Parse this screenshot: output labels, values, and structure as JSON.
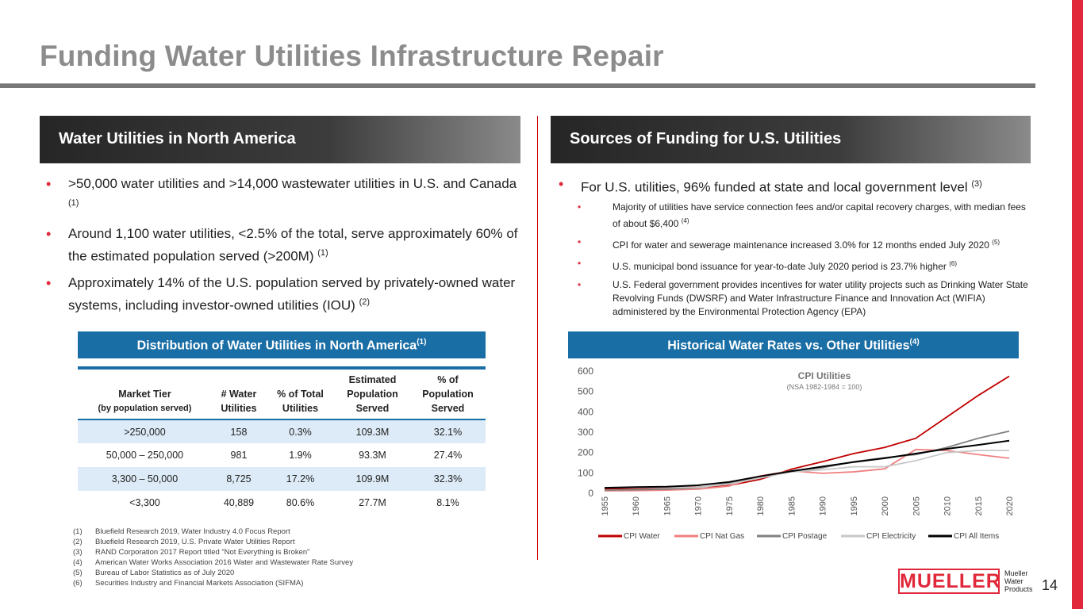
{
  "title": "Funding Water Utilities Infrastructure Repair",
  "left": {
    "heading": "Water Utilities in North America",
    "bullets": [
      {
        "text": ">50,000 water utilities and >14,000 wastewater utilities in U.S. and Canada",
        "ref": "(1)"
      },
      {
        "text": "Around 1,100 water utilities, <2.5% of the total, serve approximately 60% of the estimated population served (>200M)",
        "ref": "(1)"
      },
      {
        "text": "Approximately 14% of the U.S. population served by privately-owned water systems, including investor-owned utilities (IOU)",
        "ref": "(2)"
      }
    ]
  },
  "right": {
    "heading": "Sources of Funding for U.S. Utilities",
    "bullet": {
      "text": "For U.S. utilities, 96% funded at state and local government level",
      "ref": "(3)"
    },
    "subbullets": [
      {
        "text": "Majority of utilities have service connection fees and/or capital recovery charges, with median fees of about $6,400",
        "ref": "(4)"
      },
      {
        "text": "CPI for water and sewerage maintenance increased 3.0% for 12 months ended July 2020",
        "ref": "(5)"
      },
      {
        "text": "U.S. municipal bond issuance for year-to-date July 2020 period is 23.7% higher",
        "ref": "(6)"
      },
      {
        "text": "U.S. Federal government provides incentives for water utility projects such as Drinking Water State Revolving Funds (DWSRF) and Water Infrastructure Finance and Innovation Act (WIFIA) administered by the Environmental Protection Agency (EPA)",
        "ref": ""
      }
    ]
  },
  "table": {
    "heading": "Distribution of Water Utilities in North America",
    "heading_ref": "(1)",
    "columns": [
      {
        "l1": "",
        "l2": "Market Tier",
        "l3": "(by population served)"
      },
      {
        "l1": "",
        "l2": "# Water",
        "l3": "Utilities"
      },
      {
        "l1": "",
        "l2": "% of Total",
        "l3": "Utilities"
      },
      {
        "l1": "Estimated",
        "l2": "Population",
        "l3": "Served"
      },
      {
        "l1": "% of",
        "l2": "Population",
        "l3": "Served"
      }
    ],
    "rows": [
      [
        ">250,000",
        "158",
        "0.3%",
        "109.3M",
        "32.1%"
      ],
      [
        "50,000 – 250,000",
        "981",
        "1.9%",
        "93.3M",
        "27.4%"
      ],
      [
        "3,300 – 50,000",
        "8,725",
        "17.2%",
        "109.9M",
        "32.3%"
      ],
      [
        "<3,300",
        "40,889",
        "80.6%",
        "27.7M",
        "8.1%"
      ]
    ]
  },
  "chart_heading": "Historical Water Rates vs. Other Utilities",
  "chart_heading_ref": "(4)",
  "chart_data": {
    "type": "line",
    "title": "CPI Utilities",
    "subtitle": "(NSA 1982-1984 = 100)",
    "xlim": [
      1955,
      2020
    ],
    "ylim": [
      0,
      600
    ],
    "yticks": [
      0,
      100,
      200,
      300,
      400,
      500,
      600
    ],
    "xticks": [
      1955,
      1960,
      1965,
      1970,
      1975,
      1980,
      1985,
      1990,
      1995,
      2000,
      2005,
      2010,
      2015,
      2020
    ],
    "grid": false,
    "legend_position": "bottom",
    "x": [
      1955,
      1960,
      1965,
      1970,
      1975,
      1980,
      1985,
      1990,
      1995,
      2000,
      2005,
      2010,
      2015,
      2020
    ],
    "series": [
      {
        "name": "CPI Water",
        "color": "#c00000",
        "values": [
          22,
          24,
          26,
          30,
          38,
          68,
          118,
          155,
          195,
          225,
          270,
          375,
          480,
          575
        ]
      },
      {
        "name": "CPI Nat Gas",
        "color": "#f08080",
        "values": [
          12,
          13,
          15,
          20,
          35,
          85,
          110,
          98,
          105,
          120,
          215,
          210,
          190,
          172
        ]
      },
      {
        "name": "CPI Postage",
        "color": "#808080",
        "values": [
          15,
          17,
          20,
          27,
          48,
          75,
          110,
          125,
          155,
          175,
          190,
          225,
          270,
          305
        ]
      },
      {
        "name": "CPI Electricity",
        "color": "#c8c8c8",
        "values": [
          28,
          28,
          28,
          29,
          45,
          75,
          105,
          115,
          130,
          130,
          160,
          200,
          210,
          210
        ]
      },
      {
        "name": "CPI All Items",
        "color": "#000000",
        "values": [
          27,
          30,
          32,
          39,
          55,
          83,
          108,
          131,
          153,
          172,
          195,
          218,
          237,
          258
        ]
      }
    ]
  },
  "footnotes": [
    {
      "num": "(1)",
      "text": "Bluefield Research 2019, Water Industry 4.0 Focus Report"
    },
    {
      "num": "(2)",
      "text": "Bluefield Research 2019, U.S. Private Water Utilities Report"
    },
    {
      "num": "(3)",
      "text": "RAND Corporation 2017 Report titled “Not Everything is Broken”"
    },
    {
      "num": "(4)",
      "text": "American Water Works Association 2016 Water and Wastewater Rate Survey"
    },
    {
      "num": "(5)",
      "text": "Bureau of Labor Statistics as of July 2020"
    },
    {
      "num": "(6)",
      "text": "Securities Industry and Financial Markets Association (SIFMA)"
    }
  ],
  "logo": {
    "name": "MUELLER",
    "sub1": "Mueller",
    "sub2": "Water",
    "sub3": "Products"
  },
  "page_number": "14"
}
